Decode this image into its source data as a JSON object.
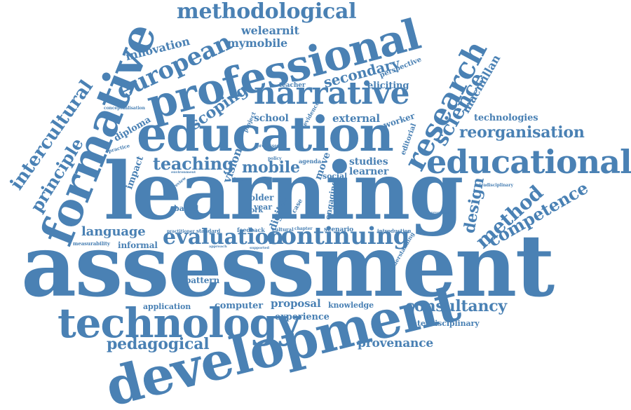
{
  "colors": {
    "text": "#4a81b4",
    "background": "#ffffff"
  },
  "words": [
    "assessment",
    "learning",
    "development",
    "technology",
    "education",
    "professional",
    "formative",
    "narrative",
    "educational",
    "research",
    "european",
    "methodological",
    "continuing",
    "evaluation",
    "science",
    "reorganisation",
    "teaching",
    "mobile",
    "pedagogical",
    "consultancy",
    "method",
    "design",
    "competence",
    "intercultural",
    "principle",
    "scoping",
    "secondary",
    "provenance",
    "language",
    "innovation",
    "welearnit",
    "mymobile",
    "macmillan",
    "external",
    "school",
    "technologies",
    "studies",
    "learner",
    "proposal",
    "computer",
    "experience",
    "knowledge",
    "interdisciplinary",
    "informal",
    "pattern",
    "application",
    "diploma",
    "eliciting",
    "teacher",
    "perspective",
    "vision",
    "based",
    "worker",
    "intradisciplinary",
    "appropriation",
    "editorial",
    "measurability",
    "impact",
    "practice",
    "older",
    "year",
    "work",
    "digital",
    "case",
    "move",
    "social",
    "agenda",
    "standard",
    "practitioner",
    "feedback",
    "cultural",
    "scenario",
    "conceptualisation",
    "project",
    "evidence",
    "supported",
    "understanding",
    "introduction",
    "approach",
    "review",
    "chapter",
    "engaging",
    "policy",
    "processes",
    "doctor",
    "environment"
  ]
}
